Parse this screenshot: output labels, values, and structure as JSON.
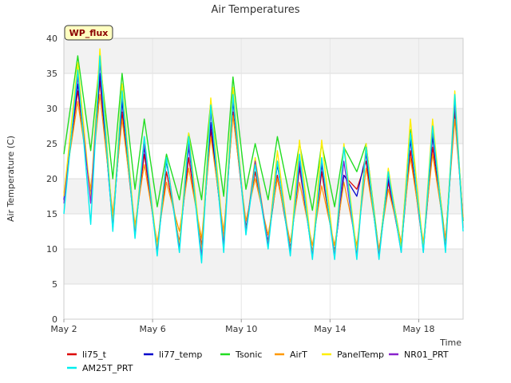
{
  "chart_data": {
    "type": "line",
    "title": "Air Temperatures",
    "xlabel": "Time",
    "ylabel": "Air Temperature (C)",
    "ylim": [
      0,
      40
    ],
    "yticks": [
      0,
      5,
      10,
      15,
      20,
      25,
      30,
      35,
      40
    ],
    "xlim": [
      "2024-05-02",
      "2024-05-20"
    ],
    "xticks": [
      {
        "date": "2024-05-02",
        "label": "May 2"
      },
      {
        "date": "2024-05-06",
        "label": "May 6"
      },
      {
        "date": "2024-05-10",
        "label": "May 10"
      },
      {
        "date": "2024-05-14",
        "label": "May 14"
      },
      {
        "date": "2024-05-18",
        "label": "May 18"
      }
    ],
    "grid": true,
    "legend_placement": "bottom",
    "site_badge": "WP_flux",
    "series": [
      {
        "name": "li75_t",
        "color": "#dd0000",
        "stroke_width": 1.2,
        "x": [
          "2024-05-02T00:00",
          "2024-05-02T15:00",
          "2024-05-03T05:00",
          "2024-05-03T15:00",
          "2024-05-04T05:00",
          "2024-05-04T15:00",
          "2024-05-05T05:00",
          "2024-05-05T15:00",
          "2024-05-06T05:00",
          "2024-05-06T15:00",
          "2024-05-07T05:00",
          "2024-05-07T15:00",
          "2024-05-08T05:00",
          "2024-05-08T15:00",
          "2024-05-09T05:00",
          "2024-05-09T15:00",
          "2024-05-10T05:00",
          "2024-05-10T15:00",
          "2024-05-11T05:00",
          "2024-05-11T15:00",
          "2024-05-12T05:00",
          "2024-05-12T15:00",
          "2024-05-13T05:00",
          "2024-05-13T15:00",
          "2024-05-14T05:00",
          "2024-05-14T15:00",
          "2024-05-15T05:00",
          "2024-05-15T15:00",
          "2024-05-16T05:00",
          "2024-05-16T15:00",
          "2024-05-17T05:00",
          "2024-05-17T15:00",
          "2024-05-18T05:00",
          "2024-05-18T15:00",
          "2024-05-19T05:00",
          "2024-05-19T15:00",
          "2024-05-20T00:00"
        ],
        "y": [
          17.5,
          32.5,
          17.5,
          34.0,
          14.0,
          29.5,
          12.5,
          23.5,
          10.0,
          21.0,
          11.0,
          23.0,
          10.5,
          27.0,
          11.5,
          29.5,
          13.0,
          21.0,
          11.0,
          20.5,
          10.0,
          21.5,
          9.5,
          21.0,
          9.5,
          20.5,
          18.5,
          22.5,
          9.5,
          19.5,
          10.0,
          24.0,
          10.0,
          24.5,
          11.0,
          29.5,
          14.0
        ]
      },
      {
        "name": "li77_temp",
        "color": "#0000cc",
        "stroke_width": 1.2,
        "x": [
          "2024-05-02T00:00",
          "2024-05-02T15:00",
          "2024-05-03T05:00",
          "2024-05-03T15:00",
          "2024-05-04T05:00",
          "2024-05-04T15:00",
          "2024-05-05T05:00",
          "2024-05-05T15:00",
          "2024-05-06T05:00",
          "2024-05-06T15:00",
          "2024-05-07T05:00",
          "2024-05-07T15:00",
          "2024-05-08T05:00",
          "2024-05-08T15:00",
          "2024-05-09T05:00",
          "2024-05-09T15:00",
          "2024-05-10T05:00",
          "2024-05-10T15:00",
          "2024-05-11T05:00",
          "2024-05-11T15:00",
          "2024-05-12T05:00",
          "2024-05-12T15:00",
          "2024-05-13T05:00",
          "2024-05-13T15:00",
          "2024-05-14T05:00",
          "2024-05-14T15:00",
          "2024-05-15T05:00",
          "2024-05-15T15:00",
          "2024-05-16T05:00",
          "2024-05-16T15:00",
          "2024-05-17T05:00",
          "2024-05-17T15:00",
          "2024-05-18T05:00",
          "2024-05-18T15:00",
          "2024-05-19T05:00",
          "2024-05-19T15:00",
          "2024-05-20T00:00"
        ],
        "y": [
          17.0,
          33.5,
          17.5,
          35.0,
          13.0,
          31.0,
          12.5,
          24.5,
          10.0,
          22.5,
          10.5,
          24.5,
          10.0,
          28.0,
          11.0,
          31.0,
          13.0,
          22.0,
          11.0,
          22.0,
          10.0,
          22.0,
          9.0,
          22.0,
          9.5,
          20.5,
          17.5,
          23.5,
          9.0,
          20.0,
          10.0,
          25.5,
          10.0,
          26.0,
          10.5,
          30.5,
          14.0
        ]
      },
      {
        "name": "Tsonic",
        "color": "#22dd22",
        "stroke_width": 1.4,
        "x": [
          "2024-05-02T00:00",
          "2024-05-02T15:00",
          "2024-05-03T05:00",
          "2024-05-03T15:00",
          "2024-05-04T05:00",
          "2024-05-04T15:00",
          "2024-05-05T05:00",
          "2024-05-05T15:00",
          "2024-05-06T05:00",
          "2024-05-06T15:00",
          "2024-05-07T05:00",
          "2024-05-07T15:00",
          "2024-05-08T05:00",
          "2024-05-08T15:00",
          "2024-05-09T05:00",
          "2024-05-09T15:00",
          "2024-05-10T05:00",
          "2024-05-10T15:00",
          "2024-05-11T05:00",
          "2024-05-11T15:00",
          "2024-05-12T05:00",
          "2024-05-12T15:00",
          "2024-05-13T05:00",
          "2024-05-13T15:00",
          "2024-05-14T05:00",
          "2024-05-14T15:00",
          "2024-05-15T05:00",
          "2024-05-15T15:00",
          "2024-05-16T05:00",
          "2024-05-16T15:00",
          "2024-05-17T05:00",
          "2024-05-17T15:00",
          "2024-05-18T05:00",
          "2024-05-18T15:00",
          "2024-05-19T05:00",
          "2024-05-19T15:00",
          "2024-05-20T00:00"
        ],
        "y": [
          23.5,
          37.5,
          24.0,
          37.0,
          20.0,
          35.0,
          18.5,
          28.5,
          16.0,
          23.5,
          17.0,
          26.5,
          17.0,
          31.0,
          17.5,
          34.5,
          18.5,
          25.0,
          17.0,
          26.0,
          17.0,
          25.0,
          15.5,
          25.0,
          16.0,
          24.5,
          21.0,
          25.0,
          9.5,
          21.0,
          10.5,
          27.0,
          10.0,
          27.0,
          11.0,
          31.0,
          14.0
        ]
      },
      {
        "name": "AirT",
        "color": "#ff9900",
        "stroke_width": 1.2,
        "x": [
          "2024-05-02T00:00",
          "2024-05-02T15:00",
          "2024-05-03T05:00",
          "2024-05-03T15:00",
          "2024-05-04T05:00",
          "2024-05-04T15:00",
          "2024-05-05T05:00",
          "2024-05-05T15:00",
          "2024-05-06T05:00",
          "2024-05-06T15:00",
          "2024-05-07T05:00",
          "2024-05-07T15:00",
          "2024-05-08T05:00",
          "2024-05-08T15:00",
          "2024-05-09T05:00",
          "2024-05-09T15:00",
          "2024-05-10T05:00",
          "2024-05-10T15:00",
          "2024-05-11T05:00",
          "2024-05-11T15:00",
          "2024-05-12T05:00",
          "2024-05-12T15:00",
          "2024-05-13T05:00",
          "2024-05-13T15:00",
          "2024-05-14T05:00",
          "2024-05-14T15:00",
          "2024-05-15T05:00",
          "2024-05-15T15:00",
          "2024-05-16T05:00",
          "2024-05-16T15:00",
          "2024-05-17T05:00",
          "2024-05-17T15:00",
          "2024-05-18T05:00",
          "2024-05-18T15:00",
          "2024-05-19T05:00",
          "2024-05-19T15:00",
          "2024-05-20T00:00"
        ],
        "y": [
          18.0,
          31.0,
          18.5,
          32.0,
          15.0,
          28.5,
          13.5,
          22.0,
          11.0,
          19.5,
          12.5,
          21.5,
          11.5,
          26.0,
          12.5,
          29.0,
          14.0,
          20.0,
          12.0,
          20.0,
          11.0,
          19.5,
          10.5,
          19.0,
          10.5,
          19.5,
          10.5,
          21.5,
          10.0,
          18.5,
          11.0,
          23.0,
          11.0,
          23.5,
          11.5,
          28.5,
          14.5
        ]
      },
      {
        "name": "PanelTemp",
        "color": "#ffee00",
        "stroke_width": 1.4,
        "x": [
          "2024-05-02T00:00",
          "2024-05-02T15:00",
          "2024-05-03T05:00",
          "2024-05-03T15:00",
          "2024-05-04T05:00",
          "2024-05-04T15:00",
          "2024-05-05T05:00",
          "2024-05-05T15:00",
          "2024-05-06T05:00",
          "2024-05-06T15:00",
          "2024-05-07T05:00",
          "2024-05-07T15:00",
          "2024-05-08T05:00",
          "2024-05-08T15:00",
          "2024-05-09T05:00",
          "2024-05-09T15:00",
          "2024-05-10T05:00",
          "2024-05-10T15:00",
          "2024-05-11T05:00",
          "2024-05-11T15:00",
          "2024-05-12T05:00",
          "2024-05-12T15:00",
          "2024-05-13T05:00",
          "2024-05-13T15:00",
          "2024-05-14T05:00",
          "2024-05-14T15:00",
          "2024-05-15T05:00",
          "2024-05-15T15:00",
          "2024-05-16T05:00",
          "2024-05-16T15:00",
          "2024-05-17T05:00",
          "2024-05-17T15:00",
          "2024-05-18T05:00",
          "2024-05-18T15:00",
          "2024-05-19T05:00",
          "2024-05-19T15:00",
          "2024-05-20T00:00"
        ],
        "y": [
          17.5,
          36.5,
          17.0,
          38.5,
          13.5,
          33.5,
          12.5,
          26.0,
          10.0,
          23.0,
          10.5,
          26.5,
          9.5,
          31.5,
          11.0,
          33.0,
          12.5,
          23.0,
          10.5,
          24.0,
          9.5,
          25.5,
          9.0,
          25.5,
          9.0,
          25.0,
          9.5,
          25.0,
          9.0,
          21.5,
          10.0,
          28.5,
          10.0,
          28.5,
          10.0,
          32.5,
          13.0
        ]
      },
      {
        "name": "NR01_PRT",
        "color": "#8822cc",
        "stroke_width": 1.2,
        "x": [
          "2024-05-02T00:00",
          "2024-05-02T15:00",
          "2024-05-03T05:00",
          "2024-05-03T15:00",
          "2024-05-04T05:00",
          "2024-05-04T15:00",
          "2024-05-05T05:00",
          "2024-05-05T15:00",
          "2024-05-06T05:00",
          "2024-05-06T15:00",
          "2024-05-07T05:00",
          "2024-05-07T15:00",
          "2024-05-08T05:00",
          "2024-05-08T15:00",
          "2024-05-09T05:00",
          "2024-05-09T15:00",
          "2024-05-10T05:00",
          "2024-05-10T15:00",
          "2024-05-11T05:00",
          "2024-05-11T15:00",
          "2024-05-12T05:00",
          "2024-05-12T15:00",
          "2024-05-13T05:00",
          "2024-05-13T15:00",
          "2024-05-14T05:00",
          "2024-05-14T15:00",
          "2024-05-15T05:00",
          "2024-05-15T15:00",
          "2024-05-16T05:00",
          "2024-05-16T15:00",
          "2024-05-17T05:00",
          "2024-05-17T15:00",
          "2024-05-18T05:00",
          "2024-05-18T15:00",
          "2024-05-19T05:00",
          "2024-05-19T15:00",
          "2024-05-20T00:00"
        ],
        "y": [
          16.5,
          34.5,
          16.5,
          36.5,
          13.0,
          32.0,
          12.0,
          25.0,
          9.5,
          23.0,
          10.0,
          25.0,
          9.0,
          29.5,
          10.5,
          31.5,
          12.5,
          22.5,
          10.5,
          22.5,
          9.5,
          22.5,
          9.0,
          22.5,
          9.0,
          22.5,
          9.0,
          24.0,
          9.0,
          20.5,
          9.5,
          26.5,
          9.5,
          27.0,
          10.0,
          31.0,
          13.0
        ]
      },
      {
        "name": "AM25T_PRT",
        "color": "#00eeee",
        "stroke_width": 1.4,
        "x": [
          "2024-05-02T00:00",
          "2024-05-02T15:00",
          "2024-05-03T05:00",
          "2024-05-03T15:00",
          "2024-05-04T05:00",
          "2024-05-04T15:00",
          "2024-05-05T05:00",
          "2024-05-05T15:00",
          "2024-05-06T05:00",
          "2024-05-06T15:00",
          "2024-05-07T05:00",
          "2024-05-07T15:00",
          "2024-05-08T05:00",
          "2024-05-08T15:00",
          "2024-05-09T05:00",
          "2024-05-09T15:00",
          "2024-05-10T05:00",
          "2024-05-10T15:00",
          "2024-05-11T05:00",
          "2024-05-11T15:00",
          "2024-05-12T05:00",
          "2024-05-12T15:00",
          "2024-05-13T05:00",
          "2024-05-13T15:00",
          "2024-05-14T05:00",
          "2024-05-14T15:00",
          "2024-05-15T05:00",
          "2024-05-15T15:00",
          "2024-05-16T05:00",
          "2024-05-16T15:00",
          "2024-05-17T05:00",
          "2024-05-17T15:00",
          "2024-05-18T05:00",
          "2024-05-18T15:00",
          "2024-05-19T05:00",
          "2024-05-19T15:00",
          "2024-05-20T00:00"
        ],
        "y": [
          15.0,
          35.5,
          13.5,
          37.5,
          12.5,
          32.5,
          11.5,
          26.0,
          9.0,
          23.0,
          9.5,
          26.0,
          8.0,
          30.5,
          9.5,
          32.0,
          12.0,
          22.0,
          10.0,
          22.5,
          9.0,
          23.5,
          8.5,
          23.0,
          8.5,
          24.5,
          8.5,
          24.5,
          8.5,
          21.0,
          9.5,
          26.5,
          9.5,
          27.5,
          9.5,
          32.0,
          12.5
        ]
      }
    ]
  }
}
